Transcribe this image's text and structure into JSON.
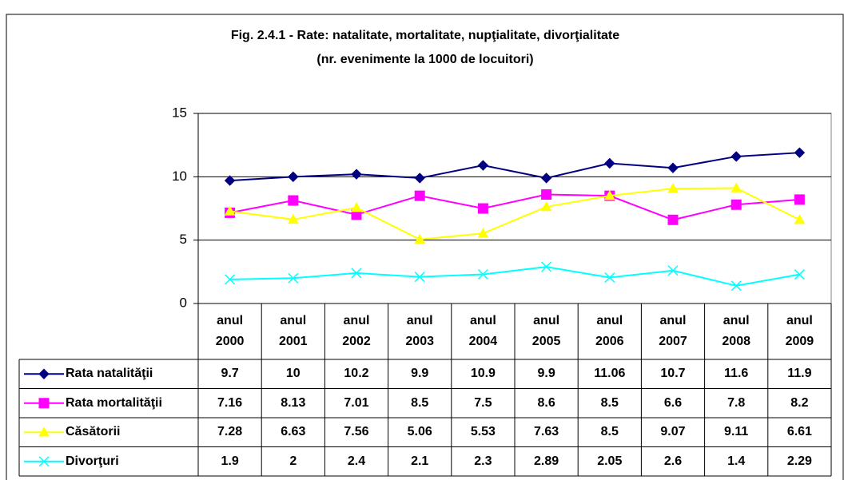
{
  "chart_data": {
    "type": "line",
    "title": "Fig. 2.4.1 - Rate: natalitate, mortalitate, nupţialitate, divorţialitate",
    "subtitle": "(nr. evenimente la 1000 de locuitori)",
    "categories": [
      "anul 2000",
      "anul 2001",
      "anul 2002",
      "anul 2003",
      "anul 2004",
      "anul 2005",
      "anul 2006",
      "anul 2007",
      "anul 2008",
      "anul 2009"
    ],
    "series": [
      {
        "name": "Rata natalităţii",
        "color": "#000080",
        "marker": "diamond",
        "values": [
          9.7,
          10,
          10.2,
          9.9,
          10.9,
          9.9,
          11.06,
          10.7,
          11.6,
          11.9
        ]
      },
      {
        "name": "Rata mortalităţii",
        "color": "#ff00ff",
        "marker": "square",
        "values": [
          7.16,
          8.13,
          7.01,
          8.5,
          7.5,
          8.6,
          8.5,
          6.6,
          7.8,
          8.2
        ]
      },
      {
        "name": "Căsătorii",
        "color": "#ffff00",
        "marker": "triangle",
        "values": [
          7.28,
          6.63,
          7.56,
          5.06,
          5.53,
          7.63,
          8.5,
          9.07,
          9.11,
          6.61
        ]
      },
      {
        "name": "Divorţuri",
        "color": "#00ffff",
        "marker": "x",
        "values": [
          1.9,
          2,
          2.4,
          2.1,
          2.3,
          2.89,
          2.05,
          2.6,
          1.4,
          2.29
        ]
      }
    ],
    "ylim": [
      0,
      15
    ],
    "yticks": [
      0,
      5,
      10,
      15
    ],
    "grid": true
  }
}
